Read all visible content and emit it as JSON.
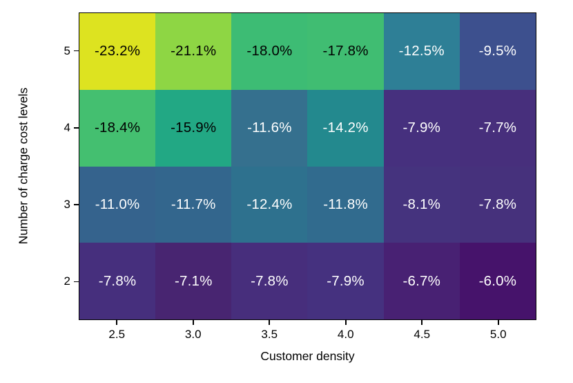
{
  "chart_data": {
    "type": "heatmap",
    "xlabel": "Customer density",
    "ylabel": "Number of charge cost levels",
    "x_ticks": [
      "2.5",
      "3.0",
      "3.5",
      "4.0",
      "4.5",
      "5.0"
    ],
    "y_ticks": [
      "5",
      "4",
      "3",
      "2"
    ],
    "x_range": [
      2.5,
      5.0
    ],
    "y_range": [
      2,
      5
    ],
    "grid": false,
    "legend": "none",
    "colormap": "viridis",
    "values_percent": [
      [
        -23.2,
        -21.1,
        -18.0,
        -17.8,
        -12.5,
        -9.5
      ],
      [
        -18.4,
        -15.9,
        -11.6,
        -14.2,
        -7.9,
        -7.7
      ],
      [
        -11.0,
        -11.7,
        -12.4,
        -11.8,
        -8.1,
        -7.8
      ],
      [
        -7.8,
        -7.1,
        -7.8,
        -7.9,
        -6.7,
        -6.0
      ]
    ],
    "labels": [
      [
        "-23.2%",
        "-21.1%",
        "-18.0%",
        "-17.8%",
        "-12.5%",
        "-9.5%"
      ],
      [
        "-18.4%",
        "-15.9%",
        "-11.6%",
        "-14.2%",
        "-7.9%",
        "-7.7%"
      ],
      [
        "-11.0%",
        "-11.7%",
        "-12.4%",
        "-11.8%",
        "-8.1%",
        "-7.8%"
      ],
      [
        "-7.8%",
        "-7.1%",
        "-7.8%",
        "-7.9%",
        "-6.7%",
        "-6.0%"
      ]
    ],
    "cell_colors": [
      [
        "#dde320",
        "#8ed644",
        "#3dbc74",
        "#40bd72",
        "#2e7f96",
        "#3d508e"
      ],
      [
        "#44bf70",
        "#22a884",
        "#35708e",
        "#23898e",
        "#46307e",
        "#472f7c"
      ],
      [
        "#35638d",
        "#33668d",
        "#2e718e",
        "#316b8e",
        "#45337e",
        "#46317c"
      ],
      [
        "#462f7d",
        "#482571",
        "#472e7c",
        "#45317f",
        "#482173",
        "#46136b"
      ]
    ],
    "text_colors": [
      [
        "#000000",
        "#000000",
        "#000000",
        "#000000",
        "#ffffff",
        "#ffffff"
      ],
      [
        "#000000",
        "#000000",
        "#ffffff",
        "#ffffff",
        "#ffffff",
        "#ffffff"
      ],
      [
        "#ffffff",
        "#ffffff",
        "#ffffff",
        "#ffffff",
        "#ffffff",
        "#ffffff"
      ],
      [
        "#ffffff",
        "#ffffff",
        "#ffffff",
        "#ffffff",
        "#ffffff",
        "#ffffff"
      ]
    ],
    "axis_color": "#000000",
    "background_color": "#ffffff"
  }
}
